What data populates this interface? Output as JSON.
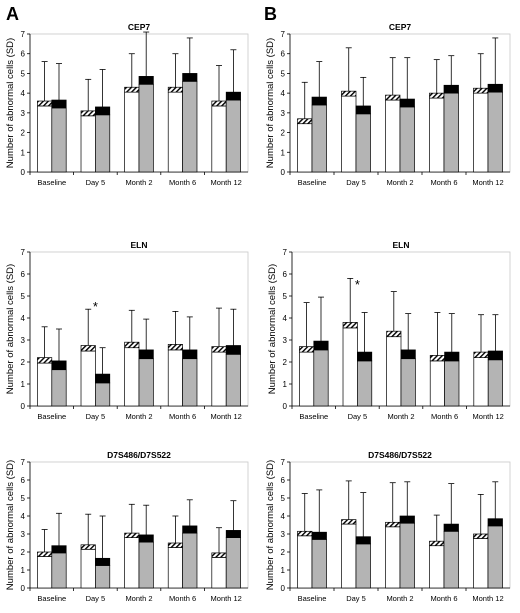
{
  "panel_letters": [
    "A",
    "B"
  ],
  "chart_data": [
    {
      "id": "A-CEP7",
      "type": "bar",
      "panel": "A",
      "title": "CEP7",
      "ylabel": "Number of abnormal cells (SD)",
      "ylim": [
        0,
        7
      ],
      "yticks": [
        0,
        1,
        2,
        3,
        4,
        5,
        6,
        7
      ],
      "categories": [
        "Baseline",
        "Day 5",
        "Month 2",
        "Month 6",
        "Month 12"
      ],
      "series": [
        {
          "fill": "white",
          "values": [
            3.6,
            3.1,
            4.3,
            4.3,
            3.6
          ],
          "error": [
            5.6,
            4.7,
            6.0,
            6.0,
            5.4
          ],
          "cap_band": 0.25
        },
        {
          "fill": "gray",
          "values": [
            3.65,
            3.3,
            4.85,
            5.0,
            4.05
          ],
          "error": [
            5.5,
            5.2,
            7.1,
            6.8,
            6.2
          ],
          "cap_band": 0.4
        }
      ],
      "annotations": []
    },
    {
      "id": "B-CEP7",
      "type": "bar",
      "panel": "B",
      "title": "CEP7",
      "ylabel": "Number of abnormal cells (SD)",
      "ylim": [
        0,
        7
      ],
      "yticks": [
        0,
        1,
        2,
        3,
        4,
        5,
        6,
        7
      ],
      "categories": [
        "Baseline",
        "Day 5",
        "Month 2",
        "Month 6",
        "Month 12"
      ],
      "series": [
        {
          "fill": "white",
          "values": [
            2.7,
            4.1,
            3.9,
            4.0,
            4.25
          ],
          "error": [
            4.55,
            6.3,
            5.8,
            5.7,
            6.0
          ],
          "cap_band": 0.25
        },
        {
          "fill": "gray",
          "values": [
            3.8,
            3.35,
            3.7,
            4.4,
            4.45
          ],
          "error": [
            5.6,
            4.8,
            5.8,
            5.9,
            6.8
          ],
          "cap_band": 0.4
        }
      ],
      "annotations": []
    },
    {
      "id": "A-ELN",
      "type": "bar",
      "panel": "A",
      "title": "ELN",
      "ylabel": "Number of abnormal cells (SD)",
      "ylim": [
        0,
        7
      ],
      "yticks": [
        0,
        1,
        2,
        3,
        4,
        5,
        6,
        7
      ],
      "categories": [
        "Baseline",
        "Day 5",
        "Month 2",
        "Month 6",
        "Month 12"
      ],
      "series": [
        {
          "fill": "white",
          "values": [
            2.2,
            2.75,
            2.9,
            2.8,
            2.7
          ],
          "error": [
            3.6,
            4.4,
            4.35,
            4.3,
            4.45
          ],
          "cap_band": 0.25
        },
        {
          "fill": "gray",
          "values": [
            2.05,
            1.45,
            2.55,
            2.55,
            2.75
          ],
          "error": [
            3.5,
            2.65,
            3.95,
            4.05,
            4.4
          ],
          "cap_band": 0.4
        }
      ],
      "annotations": [
        {
          "category": 1,
          "value": 4.5,
          "text": "*"
        }
      ]
    },
    {
      "id": "B-ELN",
      "type": "bar",
      "panel": "B",
      "title": "ELN",
      "ylabel": "Number of abnormal cells (SD)",
      "ylim": [
        0,
        7
      ],
      "yticks": [
        0,
        1,
        2,
        3,
        4,
        5,
        6,
        7
      ],
      "categories": [
        "Baseline",
        "Day 5",
        "Month 2",
        "Month 6",
        "Month 12"
      ],
      "series": [
        {
          "fill": "white",
          "values": [
            2.7,
            3.8,
            3.4,
            2.3,
            2.45
          ],
          "error": [
            4.7,
            5.8,
            5.2,
            4.25,
            4.15
          ],
          "cap_band": 0.25
        },
        {
          "fill": "gray",
          "values": [
            2.95,
            2.45,
            2.55,
            2.45,
            2.5
          ],
          "error": [
            4.95,
            4.25,
            4.2,
            4.2,
            4.15
          ],
          "cap_band": 0.4
        }
      ],
      "annotations": [
        {
          "category": 1,
          "value": 5.5,
          "text": "*"
        }
      ]
    },
    {
      "id": "A-D7S",
      "type": "bar",
      "panel": "A",
      "title": "D7S486/D7S522",
      "ylabel": "Number of abnormal cells (SD)",
      "ylim": [
        0,
        7
      ],
      "yticks": [
        0,
        1,
        2,
        3,
        4,
        5,
        6,
        7
      ],
      "categories": [
        "Baseline",
        "Day 5",
        "Month 2",
        "Month 6",
        "Month 12"
      ],
      "series": [
        {
          "fill": "white",
          "values": [
            2.0,
            2.4,
            3.05,
            2.5,
            1.95
          ],
          "error": [
            3.25,
            4.1,
            4.65,
            4.0,
            3.35
          ],
          "cap_band": 0.25
        },
        {
          "fill": "gray",
          "values": [
            2.35,
            1.65,
            2.95,
            3.45,
            3.2
          ],
          "error": [
            4.15,
            4.0,
            4.6,
            4.9,
            4.85
          ],
          "cap_band": 0.4
        }
      ],
      "annotations": []
    },
    {
      "id": "B-D7S",
      "type": "bar",
      "panel": "B",
      "title": "D7S486/D7S522",
      "ylabel": "Number of abnormal cells (SD)",
      "ylim": [
        0,
        7
      ],
      "yticks": [
        0,
        1,
        2,
        3,
        4,
        5,
        6,
        7
      ],
      "categories": [
        "Baseline",
        "Day 5",
        "Month 2",
        "Month 6",
        "Month 12"
      ],
      "series": [
        {
          "fill": "white",
          "values": [
            3.15,
            3.8,
            3.65,
            2.6,
            3.0
          ],
          "error": [
            5.25,
            5.95,
            5.85,
            4.05,
            5.2
          ],
          "cap_band": 0.25
        },
        {
          "fill": "gray",
          "values": [
            3.1,
            2.85,
            4.0,
            3.55,
            3.85
          ],
          "error": [
            5.45,
            5.3,
            5.9,
            5.8,
            5.9
          ],
          "cap_band": 0.4
        }
      ],
      "annotations": []
    }
  ],
  "colors": {
    "background": "#ffffff",
    "axis": "#000000",
    "gray_fill": "#b4b4b4",
    "white_fill": "#ffffff",
    "cap_dark": "#000000",
    "gridline": "#c8c8c8"
  }
}
